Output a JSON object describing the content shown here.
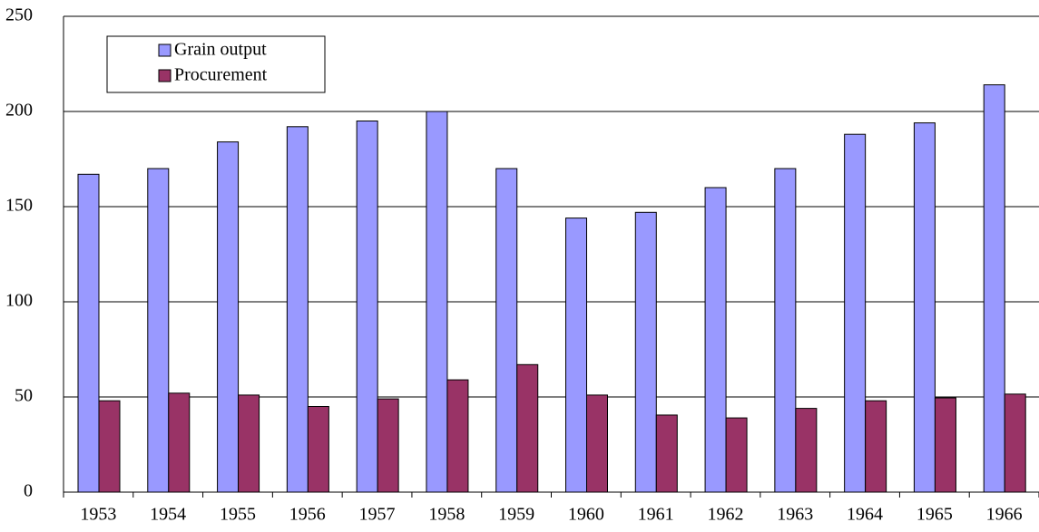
{
  "chart_data": {
    "type": "bar",
    "categories": [
      "1953",
      "1954",
      "1955",
      "1956",
      "1957",
      "1958",
      "1959",
      "1960",
      "1961",
      "1962",
      "1963",
      "1964",
      "1965",
      "1966"
    ],
    "series": [
      {
        "name": "Grain output",
        "color": "#9999ff",
        "values": [
          167,
          170,
          184,
          192,
          195,
          200,
          170,
          144,
          147,
          160,
          170,
          188,
          194,
          214
        ]
      },
      {
        "name": "Procurement",
        "color": "#993366",
        "values": [
          48,
          52,
          51,
          45,
          49,
          59,
          67,
          51,
          40.5,
          39,
          44,
          48,
          49.5,
          51.5
        ]
      }
    ],
    "ylim": [
      0,
      250
    ],
    "yticks": [
      0,
      50,
      100,
      150,
      200,
      250
    ],
    "grid": true,
    "legend": "top-left"
  }
}
